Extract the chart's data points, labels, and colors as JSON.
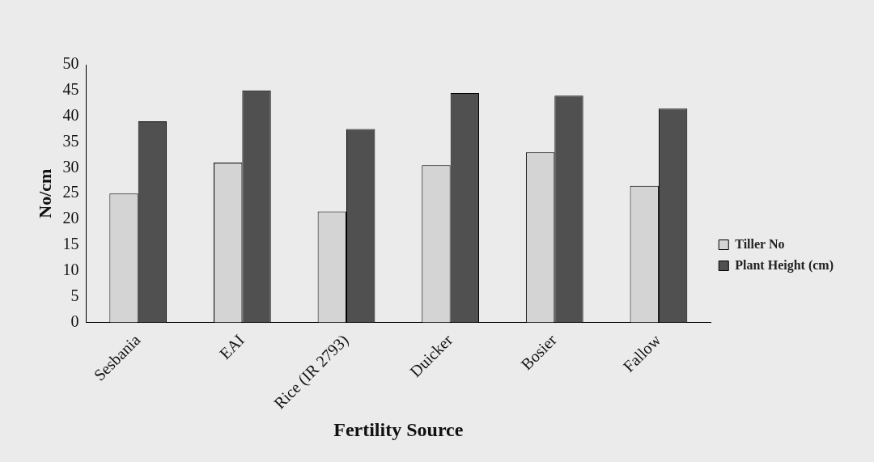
{
  "chart_data": {
    "type": "bar",
    "xlabel": "Fertility Source",
    "ylabel": "No/cm",
    "categories": [
      "Sesbania",
      "EAI",
      "Rice (IR 2793)",
      "Duicker",
      "Bosier",
      "Fallow"
    ],
    "series": [
      {
        "name": "Tiller No",
        "color": "#d4d4d4",
        "values": [
          25,
          31,
          21.5,
          30.5,
          33,
          26.5
        ]
      },
      {
        "name": "Plant Height (cm)",
        "color": "#505050",
        "values": [
          39,
          45,
          37.5,
          44.5,
          44,
          41.5
        ]
      }
    ],
    "ylim": [
      0,
      50
    ],
    "yticks": [
      0,
      5,
      10,
      15,
      20,
      25,
      30,
      35,
      40,
      45,
      50
    ],
    "grid": false,
    "legend": "right"
  }
}
